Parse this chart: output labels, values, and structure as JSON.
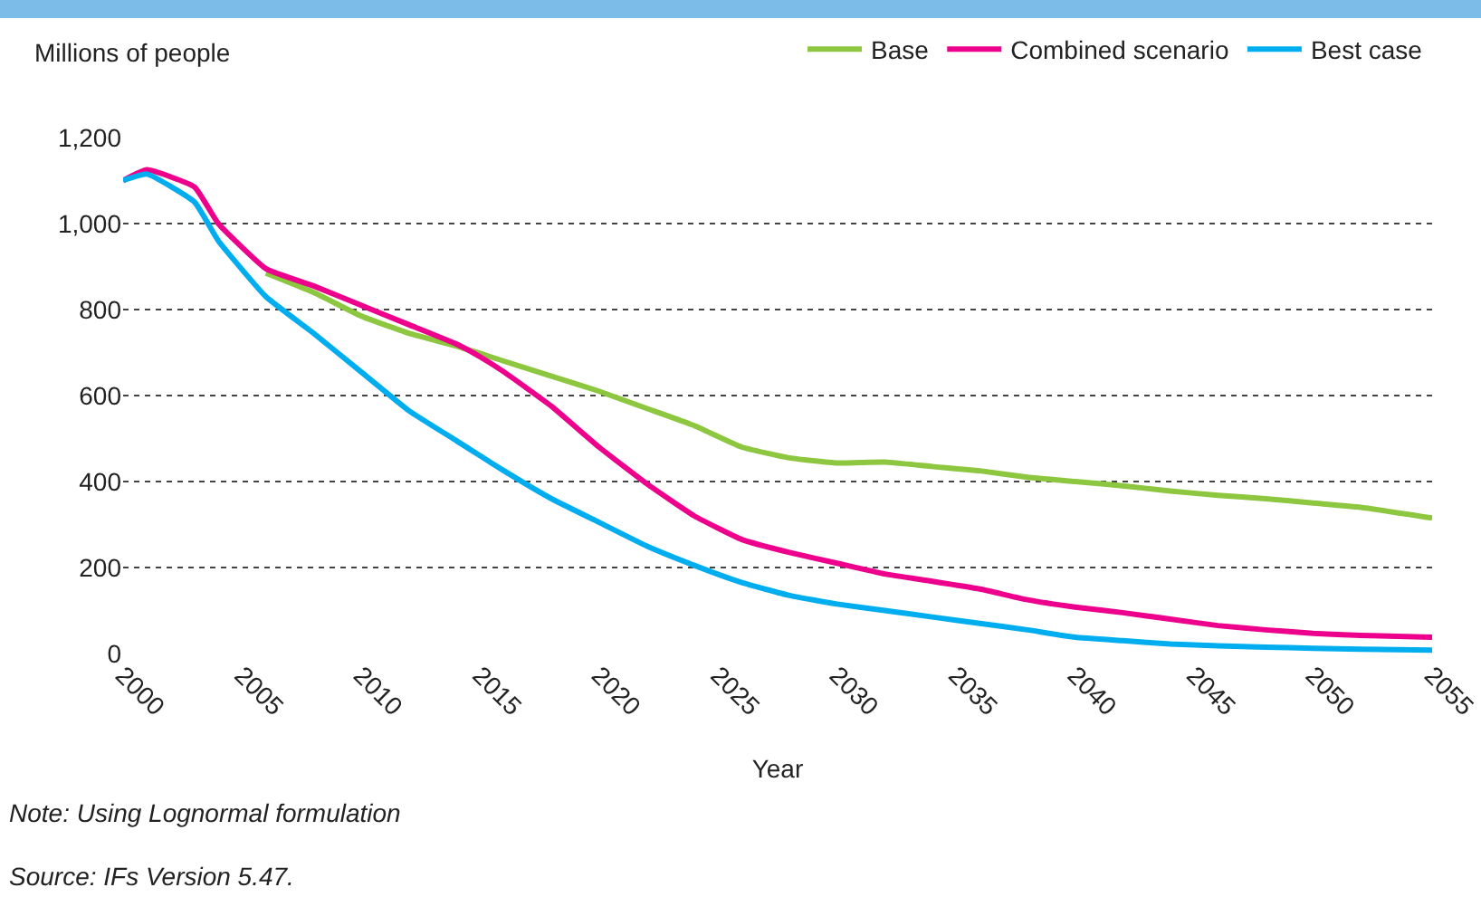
{
  "chart_data": {
    "type": "line",
    "ylabel": "Millions of people",
    "xlabel": "Year",
    "x": [
      2000,
      2001,
      2003,
      2004,
      2006,
      2008,
      2010,
      2012,
      2014,
      2015,
      2016,
      2018,
      2020,
      2022,
      2024,
      2026,
      2028,
      2030,
      2032,
      2034,
      2036,
      2038,
      2040,
      2042,
      2044,
      2046,
      2048,
      2050,
      2052,
      2055
    ],
    "series": [
      {
        "name": "Base",
        "color": "#8dc63f",
        "values": [
          null,
          null,
          null,
          null,
          885,
          840,
          785,
          745,
          715,
          698,
          680,
          645,
          610,
          570,
          530,
          480,
          455,
          443,
          445,
          435,
          425,
          410,
          400,
          390,
          378,
          368,
          360,
          350,
          340,
          315
        ]
      },
      {
        "name": "Combined scenario",
        "color": "#ec008c",
        "values": [
          1100,
          1125,
          1085,
          1000,
          895,
          855,
          810,
          765,
          720,
          690,
          655,
          575,
          480,
          395,
          320,
          265,
          235,
          210,
          185,
          168,
          150,
          125,
          108,
          95,
          80,
          65,
          55,
          47,
          42,
          38
        ]
      },
      {
        "name": "Best case",
        "color": "#00aeef",
        "values": [
          1100,
          1115,
          1050,
          960,
          830,
          745,
          655,
          565,
          495,
          460,
          425,
          360,
          305,
          250,
          205,
          165,
          135,
          115,
          100,
          85,
          70,
          55,
          38,
          30,
          22,
          18,
          15,
          12,
          10,
          8
        ]
      }
    ],
    "xlim": [
      2000,
      2055
    ],
    "xticks": [
      2000,
      2005,
      2010,
      2015,
      2020,
      2025,
      2030,
      2035,
      2040,
      2045,
      2050,
      2055
    ],
    "ylim": [
      0,
      1200
    ],
    "yticks": [
      0,
      {
        "value": 200,
        "label": "200"
      },
      {
        "value": 400,
        "label": "400"
      },
      {
        "value": 600,
        "label": "600"
      },
      {
        "value": 800,
        "label": "800"
      },
      {
        "value": 1000,
        "label": "1,000"
      },
      {
        "value": 1200,
        "label": "1,200"
      }
    ],
    "grid": "y",
    "legend": "top right",
    "marker": "none",
    "line_style": "solid",
    "annotations": [
      "Note: Using Lognormal formulation",
      "Source: IFs Version 5.47."
    ]
  }
}
